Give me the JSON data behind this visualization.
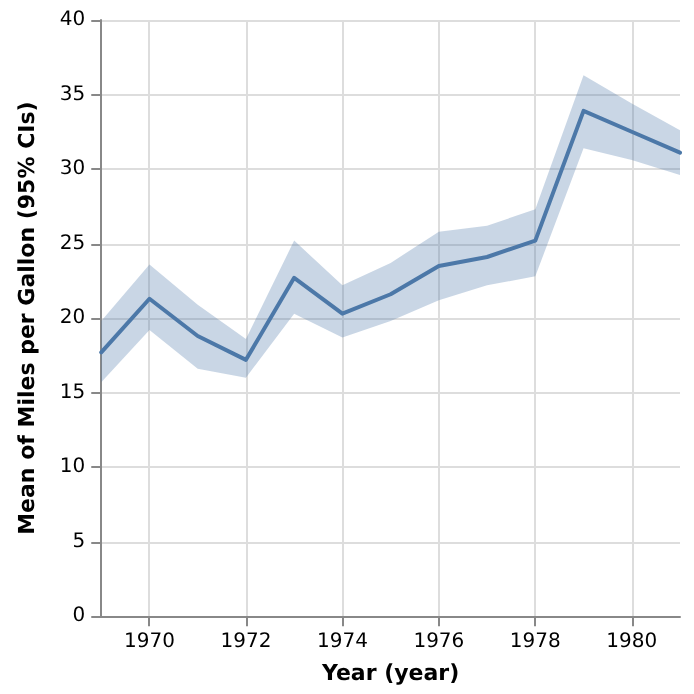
{
  "chart_data": {
    "type": "line",
    "xlabel": "Year (year)",
    "ylabel": "Mean of Miles per Gallon (95% CIs)",
    "x": [
      1969,
      1970,
      1971,
      1972,
      1973,
      1974,
      1975,
      1976,
      1977,
      1978,
      1979,
      1980,
      1981
    ],
    "series": [
      {
        "color": "#4c78a8",
        "values": [
          17.7,
          21.3,
          18.8,
          17.2,
          22.7,
          20.3,
          21.6,
          23.5,
          24.1,
          25.2,
          33.9,
          32.5,
          31.1
        ],
        "lower": [
          15.7,
          19.2,
          16.6,
          16.0,
          20.3,
          18.7,
          19.8,
          21.2,
          22.2,
          22.8,
          31.4,
          30.6,
          29.6
        ],
        "upper": [
          19.8,
          23.6,
          20.9,
          18.6,
          25.2,
          22.2,
          23.7,
          25.8,
          26.2,
          27.3,
          36.3,
          34.4,
          32.6
        ]
      }
    ],
    "xlim": [
      1969,
      1981
    ],
    "xticks": [
      1970,
      1972,
      1974,
      1976,
      1978,
      1980
    ],
    "ylim": [
      0,
      40
    ],
    "yticks": [
      0,
      5,
      10,
      15,
      20,
      25,
      30,
      35,
      40
    ],
    "grid": true,
    "marker": "none",
    "line_style": "solid"
  }
}
